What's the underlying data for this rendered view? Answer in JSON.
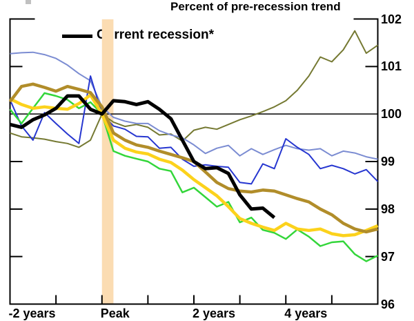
{
  "title": "Percent of pre-recession trend",
  "legend": {
    "label": "Current recession*"
  },
  "chart_data": {
    "type": "line",
    "title": "Percent of pre-recession trend",
    "xlim": [
      -2,
      6
    ],
    "ylim": [
      96,
      102
    ],
    "x_start": -2,
    "x_step": 0.25,
    "x_unit": "years relative to business-cycle peak",
    "baseline": 100,
    "grid": "off",
    "legend_position": "top-left-inside",
    "y_tick_labels": [
      "96",
      "97",
      "98",
      "99",
      "100",
      "101",
      "102"
    ],
    "y_tick_values": [
      96,
      97,
      98,
      99,
      100,
      101,
      102
    ],
    "y_side_tick_values": [
      97,
      98,
      99,
      101
    ],
    "x_bottom_tick_values": [
      -1,
      0,
      1,
      2,
      3,
      4,
      5
    ],
    "x_tick_labels": [
      {
        "t": -2,
        "label": "-2 years"
      },
      {
        "t": 0,
        "label": "Peak"
      },
      {
        "t": 2,
        "label": "2 years"
      },
      {
        "t": 4,
        "label": "4 years"
      }
    ],
    "peak_band": {
      "t_start": 0,
      "t_end": 0.25,
      "color": "#fbdcb2"
    },
    "series": [
      {
        "id": "recession-olive",
        "color": "#757932",
        "width": 2,
        "values": [
          99.6,
          99.52,
          99.5,
          99.47,
          99.42,
          99.38,
          99.3,
          99.45,
          100.0,
          99.83,
          99.74,
          99.78,
          99.72,
          99.56,
          99.58,
          99.43,
          99.66,
          99.72,
          99.68,
          99.78,
          99.88,
          99.96,
          100.05,
          100.15,
          100.28,
          100.5,
          100.8,
          101.2,
          101.1,
          101.35,
          101.75,
          101.28,
          101.45
        ]
      },
      {
        "id": "recession-light-blue",
        "color": "#7b8cd2",
        "width": 2,
        "values": [
          101.27,
          101.29,
          101.3,
          101.25,
          101.17,
          101.03,
          100.85,
          100.7,
          100.15,
          99.93,
          99.85,
          99.8,
          99.8,
          99.65,
          99.56,
          99.5,
          99.35,
          99.17,
          99.28,
          99.34,
          99.12,
          99.27,
          99.15,
          99.25,
          99.34,
          99.27,
          99.24,
          99.27,
          99.12,
          99.22,
          99.18,
          99.1,
          99.05
        ]
      },
      {
        "id": "recession-blue",
        "color": "#2636d0",
        "width": 2,
        "values": [
          100.3,
          99.75,
          99.45,
          100.03,
          99.8,
          99.58,
          99.38,
          100.8,
          100.0,
          99.75,
          99.68,
          99.53,
          99.52,
          99.28,
          99.3,
          99.05,
          98.9,
          98.93,
          98.9,
          98.88,
          98.56,
          98.53,
          98.95,
          98.85,
          99.48,
          99.3,
          99.15,
          98.85,
          98.92,
          98.85,
          98.74,
          98.83,
          98.58
        ]
      },
      {
        "id": "recession-green",
        "color": "#33d63a",
        "width": 2.5,
        "values": [
          100.1,
          99.8,
          100.12,
          100.44,
          100.38,
          100.3,
          100.12,
          100.25,
          100.0,
          99.22,
          99.12,
          99.06,
          99.0,
          98.85,
          98.8,
          98.35,
          98.45,
          98.25,
          98.05,
          98.15,
          97.72,
          97.82,
          97.56,
          97.5,
          97.37,
          97.57,
          97.42,
          97.22,
          97.3,
          97.32,
          97.05,
          96.9,
          97.02
        ]
      },
      {
        "id": "recession-yellow",
        "color": "#fcd21c",
        "width": 4.5,
        "values": [
          100.32,
          100.2,
          100.12,
          100.15,
          100.12,
          100.1,
          100.22,
          100.4,
          100.0,
          99.45,
          99.28,
          99.2,
          99.16,
          99.05,
          98.98,
          98.82,
          98.62,
          98.45,
          98.28,
          98.05,
          97.8,
          97.7,
          97.62,
          97.55,
          97.7,
          97.58,
          97.55,
          97.58,
          97.48,
          97.44,
          97.46,
          97.55,
          97.65
        ]
      },
      {
        "id": "recession-gold",
        "color": "#b18d2a",
        "width": 4.5,
        "values": [
          100.26,
          100.58,
          100.63,
          100.56,
          100.48,
          100.58,
          100.52,
          100.45,
          100.15,
          99.6,
          99.45,
          99.35,
          99.3,
          99.22,
          99.15,
          99.08,
          99.0,
          98.78,
          98.56,
          98.43,
          98.38,
          98.36,
          98.4,
          98.38,
          98.3,
          98.22,
          98.15,
          98.0,
          97.88,
          97.7,
          97.58,
          97.52,
          97.58
        ]
      },
      {
        "id": "current-recession",
        "name": "Current recession*",
        "color": "#000000",
        "width": 5,
        "values": [
          99.78,
          99.72,
          99.88,
          99.98,
          100.12,
          100.38,
          100.38,
          100.1,
          100.0,
          100.28,
          100.26,
          100.2,
          100.26,
          100.1,
          99.9,
          99.45,
          99.0,
          98.85,
          98.87,
          98.75,
          98.3,
          98.0,
          98.02,
          97.82
        ]
      }
    ]
  }
}
